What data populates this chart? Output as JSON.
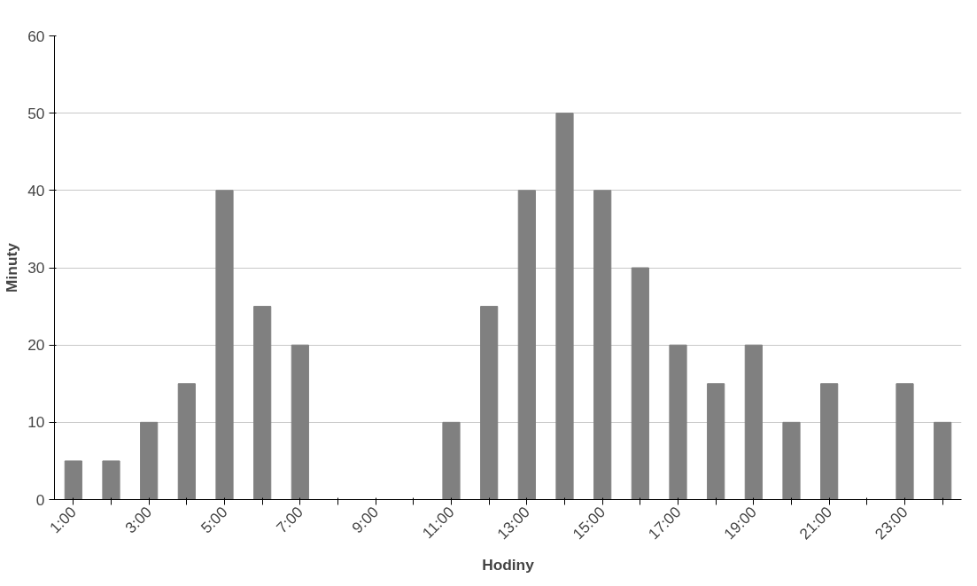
{
  "chart_data": {
    "type": "bar",
    "xlabel": "Hodiny",
    "ylabel": "Minuty",
    "categories": [
      "1:00",
      null,
      "3:00",
      null,
      "5:00",
      null,
      "7:00",
      null,
      "9:00",
      null,
      "11:00",
      null,
      "13:00",
      null,
      "15:00",
      null,
      "17:00",
      null,
      "19:00",
      null,
      "21:00",
      null,
      "23:00",
      null
    ],
    "values": [
      5,
      5,
      10,
      15,
      40,
      25,
      20,
      0,
      0,
      0,
      10,
      25,
      40,
      50,
      40,
      30,
      20,
      15,
      20,
      10,
      15,
      0,
      15,
      10
    ],
    "color": "#808080",
    "ylim": [
      0,
      60
    ],
    "yticks": [
      0,
      10,
      20,
      30,
      40,
      50,
      60
    ],
    "grid": "y"
  }
}
